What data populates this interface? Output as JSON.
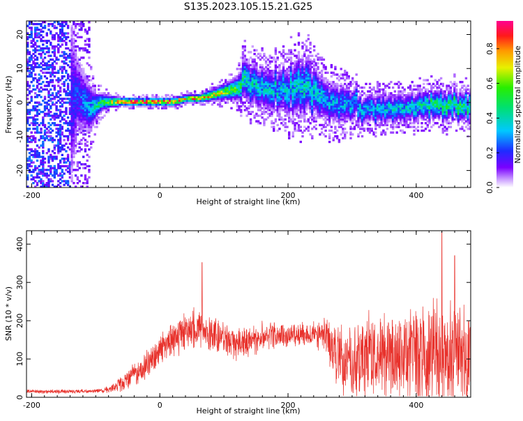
{
  "title": "S135.2023.105.15.21.G25",
  "chart_data": [
    {
      "type": "heatmap",
      "xlabel": "Height of straight line (km)",
      "ylabel": "Frequency (Hz)",
      "xlim": [
        -208,
        485
      ],
      "ylim": [
        -25,
        24
      ],
      "xticks": [
        -200,
        0,
        200,
        400
      ],
      "yticks": [
        -20,
        -10,
        0,
        10,
        20
      ],
      "grid": false,
      "colorbar": {
        "label": "Normalized spectral amplitude",
        "range": [
          0,
          0.96
        ],
        "ticks": [
          0.0,
          0.2,
          0.4,
          0.6,
          0.8
        ],
        "colormap": "rainbow (white-violet-blue-cyan-green-yellow-orange-red-magenta)"
      },
      "ridge": {
        "x": [
          -150,
          -140,
          -130,
          -120,
          -110,
          -100,
          -90,
          -80,
          -60,
          -40,
          -20,
          0,
          20,
          40,
          60,
          80,
          100,
          120,
          130,
          140,
          160,
          180,
          200,
          220,
          240,
          260,
          280,
          300,
          320,
          340,
          360,
          380,
          400,
          420,
          440,
          460,
          480
        ],
        "y": [
          0,
          0,
          2,
          0,
          -2,
          -1,
          0,
          0,
          0,
          0,
          0,
          0,
          0,
          1,
          1,
          2,
          3,
          4,
          6,
          5,
          4,
          3,
          4,
          5,
          3,
          0,
          -1,
          -1,
          -2,
          -2,
          -2,
          -2,
          -1,
          -1,
          -1,
          -1,
          -1
        ],
        "peak_amplitude": [
          0.2,
          0.2,
          0.25,
          0.3,
          0.35,
          0.5,
          0.6,
          0.7,
          0.9,
          0.95,
          0.95,
          0.95,
          0.9,
          0.85,
          0.9,
          0.8,
          0.7,
          0.6,
          0.5,
          0.45,
          0.4,
          0.4,
          0.4,
          0.45,
          0.4,
          0.35,
          0.35,
          0.35,
          0.35,
          0.4,
          0.4,
          0.4,
          0.45,
          0.5,
          0.55,
          0.55,
          0.5
        ],
        "spread_hz": [
          25,
          25,
          10,
          8,
          6,
          3,
          2,
          1.5,
          1,
          1,
          1,
          1,
          1,
          1,
          1,
          1.5,
          2,
          3,
          5,
          5,
          5,
          5,
          6,
          7,
          6,
          5,
          5,
          4,
          3.5,
          3.5,
          3.5,
          3.5,
          3.5,
          3.5,
          3.5,
          3.5,
          3.5
        ]
      }
    },
    {
      "type": "line",
      "xlabel": "Height of straight line (km)",
      "ylabel": "SNR (10 * v/v)",
      "xlim": [
        -208,
        485
      ],
      "ylim": [
        0,
        435
      ],
      "xticks": [
        -200,
        0,
        200,
        400
      ],
      "yticks": [
        0,
        100,
        200,
        300,
        400
      ],
      "grid": false,
      "color": "#e8312b",
      "envelope": {
        "x": [
          -208,
          -150,
          -100,
          -80,
          -60,
          -40,
          -20,
          0,
          20,
          40,
          60,
          80,
          100,
          120,
          140,
          160,
          180,
          200,
          220,
          240,
          260,
          280,
          300,
          320,
          340,
          360,
          380,
          400,
          420,
          440,
          460,
          485
        ],
        "mean": [
          15,
          15,
          16,
          20,
          35,
          60,
          85,
          120,
          150,
          175,
          175,
          165,
          155,
          140,
          145,
          160,
          165,
          160,
          165,
          165,
          160,
          95,
          90,
          100,
          105,
          110,
          110,
          110,
          115,
          110,
          110,
          105
        ],
        "amplitude": [
          6,
          6,
          6,
          10,
          25,
          40,
          45,
          50,
          55,
          60,
          70,
          60,
          55,
          50,
          50,
          45,
          40,
          35,
          35,
          40,
          60,
          110,
          120,
          130,
          140,
          145,
          150,
          155,
          160,
          170,
          160,
          150
        ]
      },
      "peaks": [
        {
          "x": 66,
          "y": 352
        },
        {
          "x": 440,
          "y": 432
        },
        {
          "x": 460,
          "y": 370
        }
      ]
    }
  ]
}
